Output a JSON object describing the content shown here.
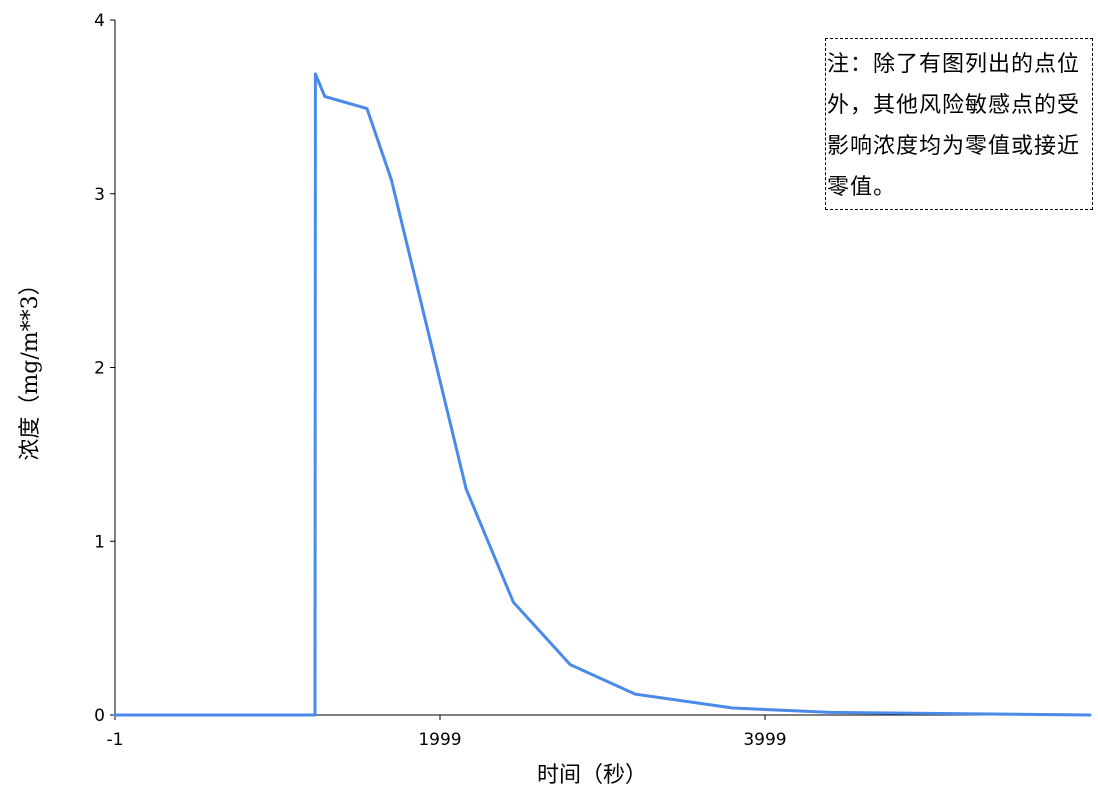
{
  "note": "注：除了有图列出的点位外，其他风险敏感点的受影响浓度均为零值或接近零值。",
  "chart_data": {
    "type": "line",
    "title": "",
    "xlabel": "时间（秒）",
    "ylabel": "浓度（mg/m**3）",
    "xlim": [
      -1,
      5999
    ],
    "ylim": [
      0,
      4
    ],
    "x_ticks": [
      -1,
      1999,
      3999
    ],
    "x_tick_labels": [
      "-1",
      "1999",
      "3999"
    ],
    "y_ticks": [
      0,
      1,
      2,
      3,
      4
    ],
    "y_tick_labels": [
      "0",
      "1",
      "2",
      "3",
      "4"
    ],
    "grid": false,
    "line_color": "#4a8ae8",
    "series": [
      {
        "x": [
          -1,
          1230,
          1232,
          1290,
          1550,
          1700,
          2160,
          2450,
          2800,
          3200,
          3800,
          4400,
          5700,
          5999
        ],
        "y": [
          0,
          0,
          3.69,
          3.56,
          3.49,
          3.08,
          1.3,
          0.65,
          0.29,
          0.12,
          0.04,
          0.015,
          0.003,
          0
        ]
      }
    ]
  }
}
